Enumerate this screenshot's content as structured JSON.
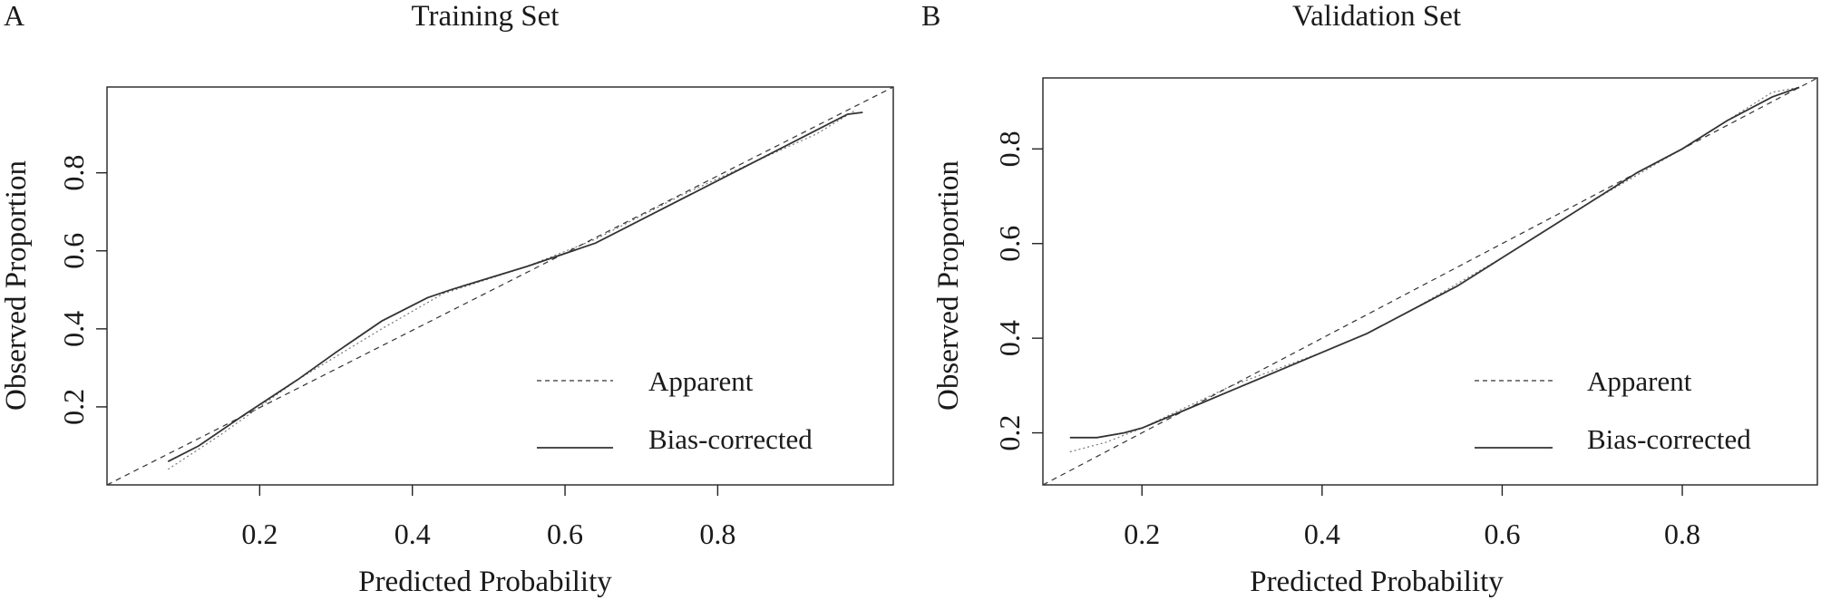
{
  "chart_data": [
    {
      "panel": "A",
      "type": "line",
      "title": "Training Set",
      "xlabel": "Predicted Probability",
      "ylabel": "Observed Proportion",
      "xlim": [
        0.0,
        1.03
      ],
      "ylim": [
        0.0,
        1.02
      ],
      "xticks": [
        "0.2",
        "0.4",
        "0.6",
        "0.8"
      ],
      "yticks": [
        "0.2",
        "0.4",
        "0.6",
        "0.8"
      ],
      "legend": {
        "position": "bottom-right",
        "entries": [
          "Apparent",
          "Bias-corrected"
        ]
      },
      "series": [
        {
          "name": "Apparent",
          "x": [
            0.08,
            0.15,
            0.25,
            0.36,
            0.44,
            0.55,
            0.64,
            0.75,
            0.85,
            0.93,
            0.98
          ],
          "y": [
            0.04,
            0.13,
            0.27,
            0.4,
            0.49,
            0.56,
            0.63,
            0.74,
            0.83,
            0.9,
            0.96
          ]
        },
        {
          "name": "Bias-corrected",
          "x": [
            0.08,
            0.12,
            0.18,
            0.25,
            0.3,
            0.36,
            0.42,
            0.45,
            0.5,
            0.55,
            0.64,
            0.72,
            0.8,
            0.88,
            0.97,
            0.99
          ],
          "y": [
            0.06,
            0.1,
            0.18,
            0.27,
            0.34,
            0.42,
            0.48,
            0.5,
            0.53,
            0.56,
            0.62,
            0.7,
            0.78,
            0.86,
            0.95,
            0.955
          ]
        },
        {
          "name": "Ideal",
          "x": [
            0.0,
            1.03
          ],
          "y": [
            0.0,
            1.02
          ]
        }
      ]
    },
    {
      "panel": "B",
      "type": "line",
      "title": "Validation Set",
      "xlabel": "Predicted Probability",
      "ylabel": "Observed Proportion",
      "xlim": [
        0.09,
        0.95
      ],
      "ylim": [
        0.09,
        0.95
      ],
      "xticks": [
        "0.2",
        "0.4",
        "0.6",
        "0.8"
      ],
      "yticks": [
        "0.2",
        "0.4",
        "0.6",
        "0.8"
      ],
      "legend": {
        "position": "bottom-right",
        "entries": [
          "Apparent",
          "Bias-corrected"
        ]
      },
      "series": [
        {
          "name": "Apparent",
          "x": [
            0.12,
            0.16,
            0.2,
            0.3,
            0.4,
            0.45,
            0.5,
            0.6,
            0.7,
            0.8,
            0.9,
            0.93
          ],
          "y": [
            0.16,
            0.18,
            0.21,
            0.3,
            0.37,
            0.41,
            0.46,
            0.57,
            0.69,
            0.8,
            0.92,
            0.93
          ]
        },
        {
          "name": "Bias-corrected",
          "x": [
            0.12,
            0.15,
            0.18,
            0.2,
            0.25,
            0.3,
            0.35,
            0.4,
            0.45,
            0.5,
            0.55,
            0.6,
            0.65,
            0.7,
            0.75,
            0.8,
            0.85,
            0.9,
            0.93
          ],
          "y": [
            0.19,
            0.19,
            0.2,
            0.21,
            0.25,
            0.29,
            0.33,
            0.37,
            0.41,
            0.46,
            0.51,
            0.57,
            0.63,
            0.69,
            0.75,
            0.8,
            0.86,
            0.91,
            0.93
          ]
        },
        {
          "name": "Ideal",
          "x": [
            0.09,
            0.95
          ],
          "y": [
            0.09,
            0.95
          ]
        }
      ]
    }
  ]
}
